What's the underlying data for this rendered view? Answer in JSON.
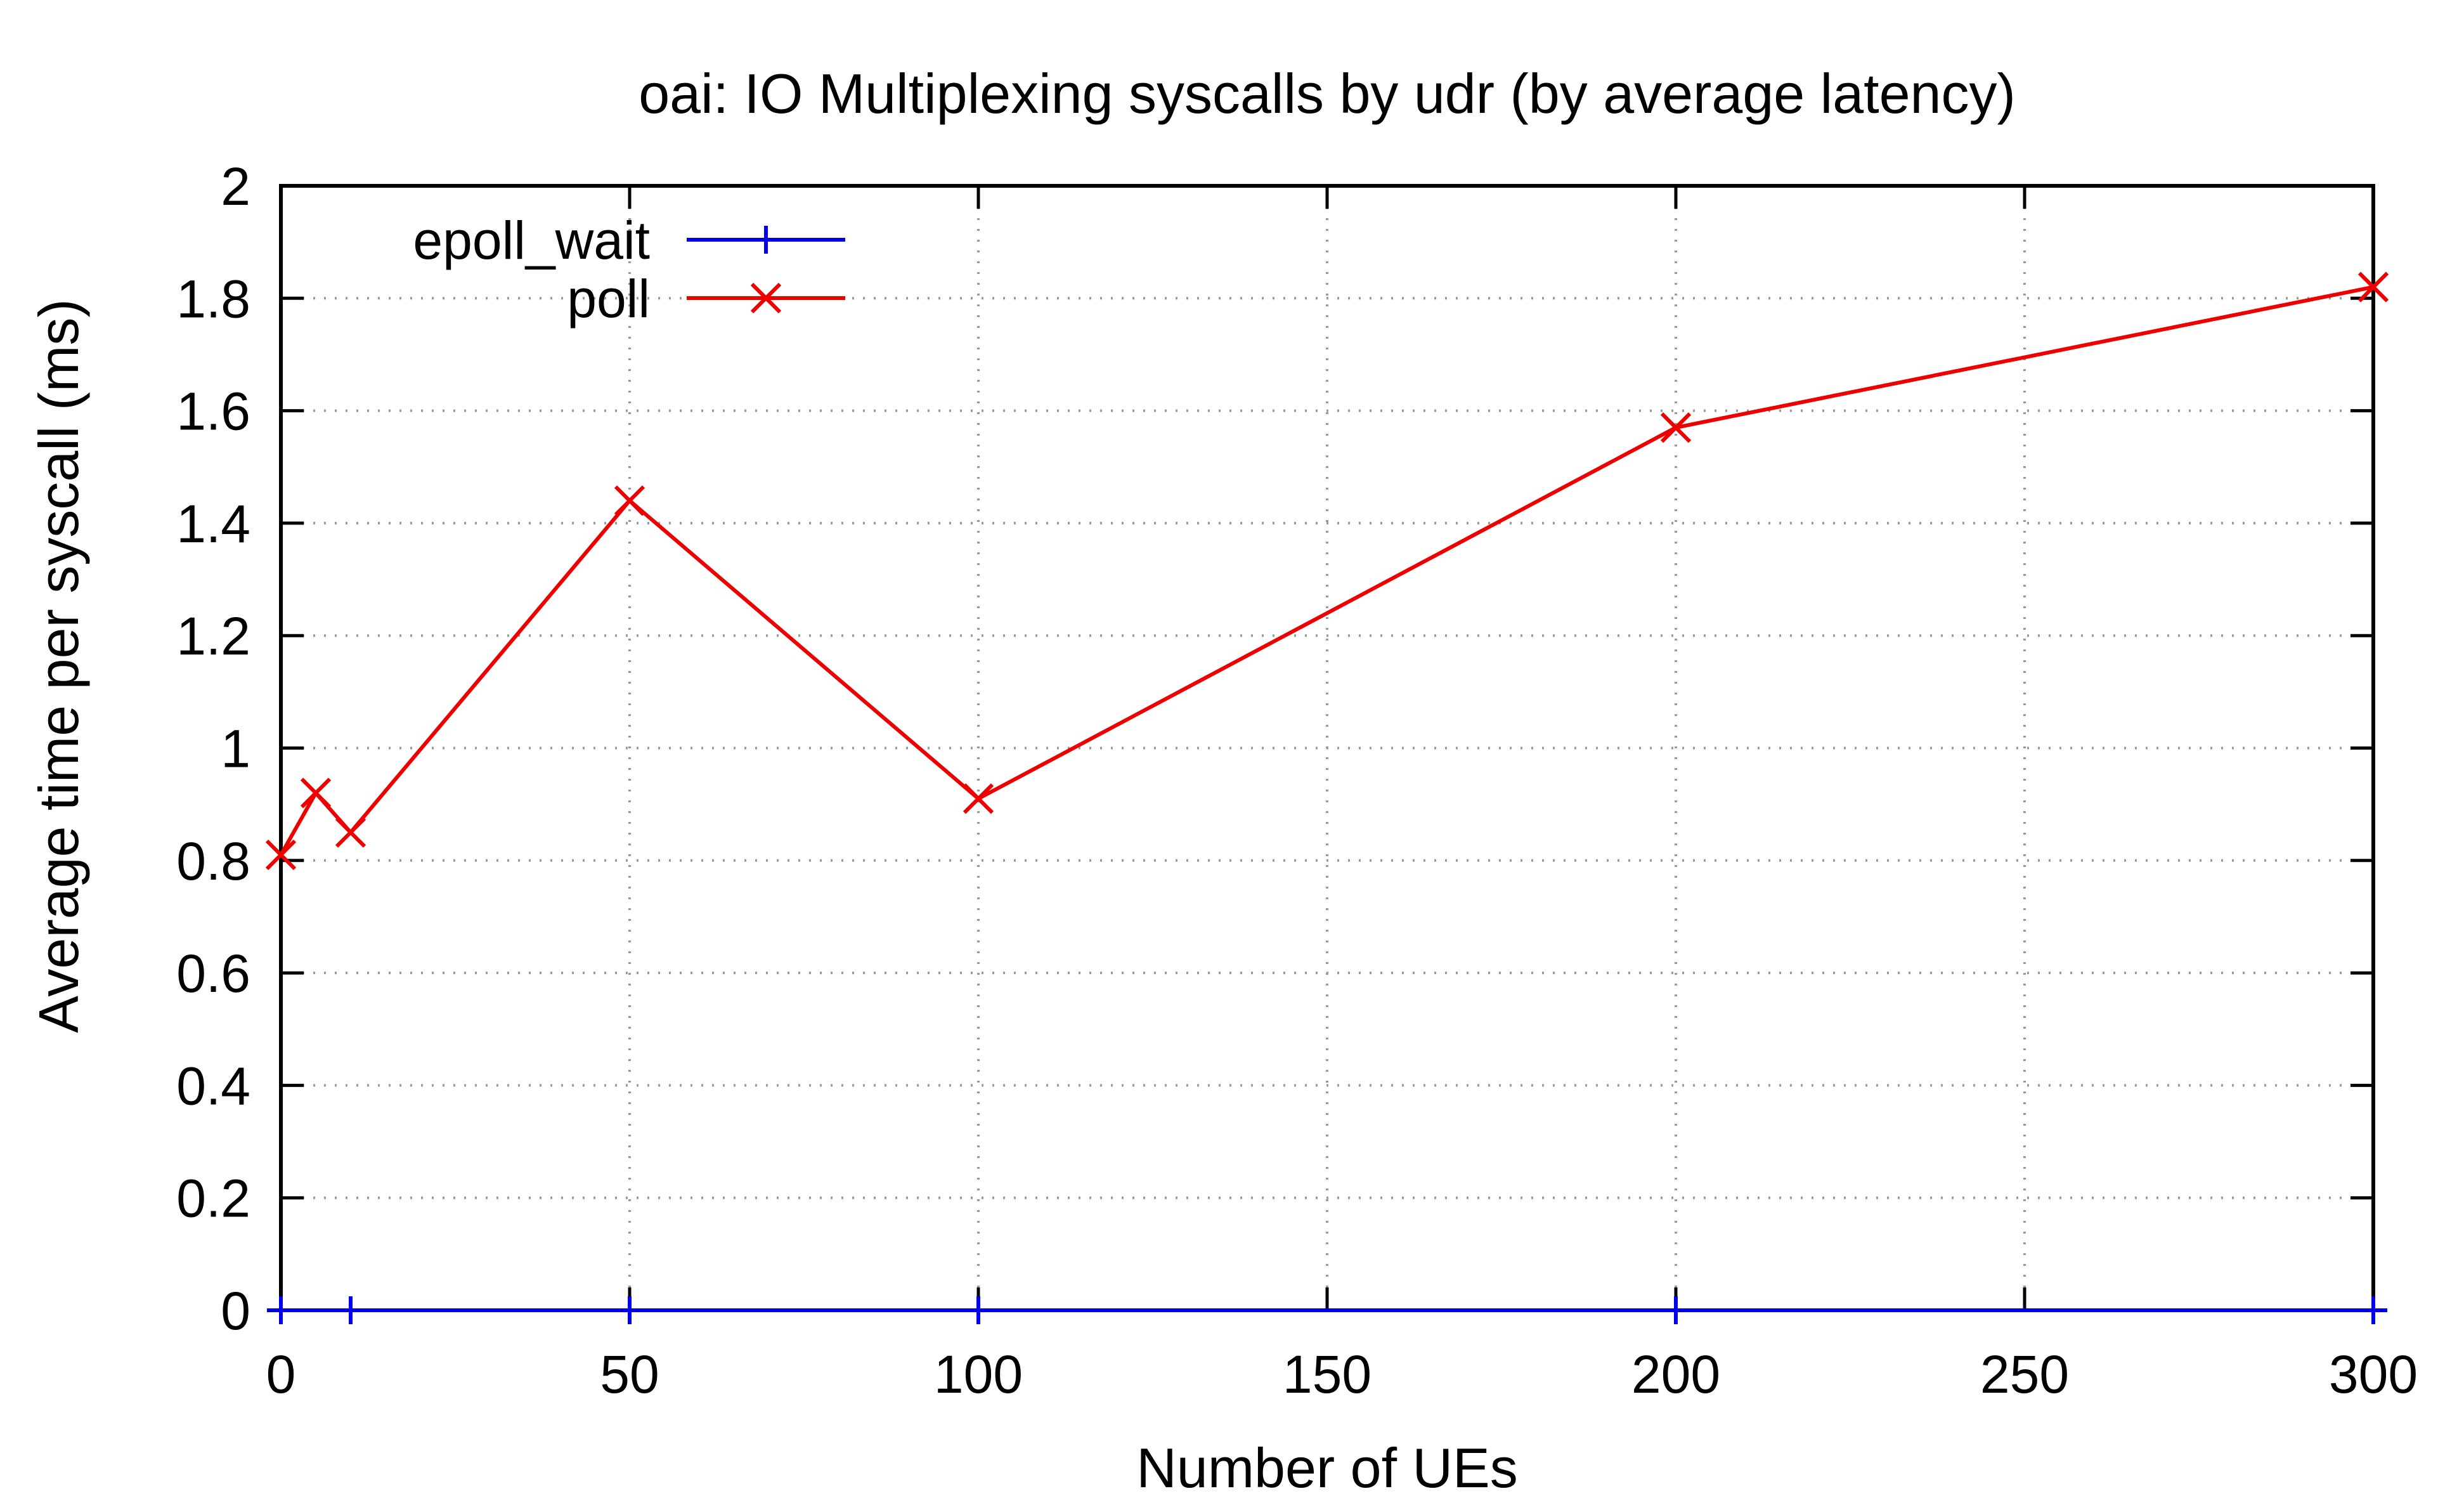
{
  "chart_data": {
    "type": "line",
    "title": "oai: IO Multiplexing syscalls by udr (by average latency)",
    "xlabel": "Number of UEs",
    "ylabel": "Average time per syscall (ms)",
    "xlim": [
      0,
      300
    ],
    "ylim": [
      0,
      2
    ],
    "x_ticks": [
      0,
      50,
      100,
      150,
      200,
      250,
      300
    ],
    "y_ticks": [
      0,
      0.2,
      0.4,
      0.6,
      0.8,
      1,
      1.2,
      1.4,
      1.6,
      1.8,
      2
    ],
    "y_tick_labels": [
      "0",
      "0.2",
      "0.4",
      "0.6",
      "0.8",
      "1",
      "1.2",
      "1.4",
      "1.6",
      "1.8",
      "2"
    ],
    "grid": true,
    "legend_position": "top-left",
    "series": [
      {
        "name": "epoll_wait",
        "color": "#0000ee",
        "marker": "plus",
        "x": [
          0,
          10,
          50,
          100,
          200,
          300
        ],
        "y": [
          0,
          0,
          0,
          0,
          0,
          0
        ]
      },
      {
        "name": "poll",
        "color": "#ee0000",
        "marker": "cross",
        "x": [
          0,
          5,
          10,
          50,
          100,
          200,
          300
        ],
        "y": [
          0.81,
          0.92,
          0.85,
          1.44,
          0.91,
          1.57,
          1.82
        ]
      }
    ]
  }
}
